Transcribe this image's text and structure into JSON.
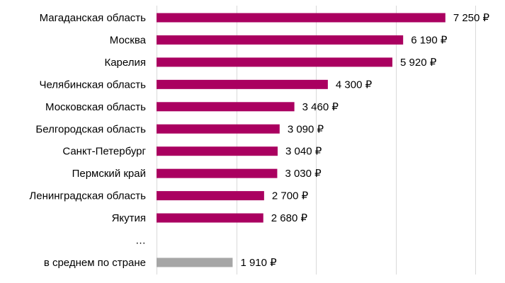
{
  "chart_data": {
    "type": "bar",
    "orientation": "horizontal",
    "categories": [
      "Магаданская область",
      "Москва",
      "Карелия",
      "Челябинская область",
      "Московская область",
      "Белгородская область",
      "Санкт-Петербург",
      "Пермский край",
      "Ленинградская область",
      "Якутия",
      "…",
      "в среднем по стране"
    ],
    "values": [
      7250,
      6190,
      5920,
      4300,
      3460,
      3090,
      3040,
      3030,
      2700,
      2680,
      null,
      1910
    ],
    "value_labels": [
      "7 250 ₽",
      "6 190 ₽",
      "5 920 ₽",
      "4 300 ₽",
      "3 460 ₽",
      "3 090 ₽",
      "3 040 ₽",
      "3 030 ₽",
      "2 700 ₽",
      "2 680 ₽",
      "",
      "1 910 ₽"
    ],
    "xlim": [
      0,
      8000
    ],
    "grid": true,
    "gridline_values": [
      0,
      2000,
      4000,
      6000,
      8000
    ],
    "colors": {
      "bar": "#AA0060",
      "average_bar": "#A6A6A6",
      "grid": "#D9D9D9"
    }
  }
}
